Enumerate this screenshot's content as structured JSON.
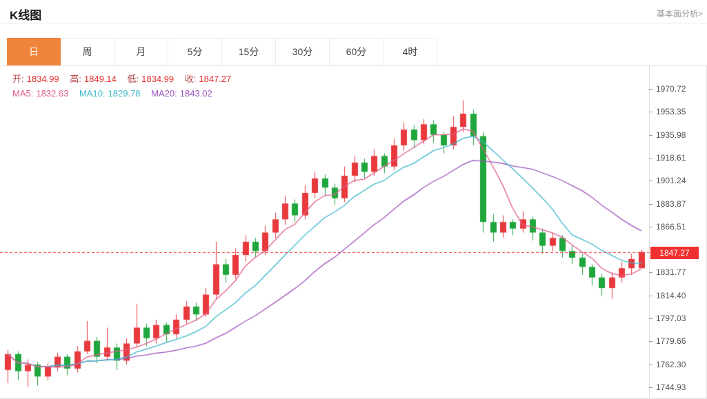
{
  "header": {
    "title": "K线图",
    "link": "基本面分析>"
  },
  "tabs": [
    {
      "label": "日",
      "active": true
    },
    {
      "label": "周",
      "active": false
    },
    {
      "label": "月",
      "active": false
    },
    {
      "label": "5分",
      "active": false
    },
    {
      "label": "15分",
      "active": false
    },
    {
      "label": "30分",
      "active": false
    },
    {
      "label": "60分",
      "active": false
    },
    {
      "label": "4时",
      "active": false
    }
  ],
  "info": {
    "ohlc": [
      {
        "label": "开:",
        "value": "1834.99"
      },
      {
        "label": "高:",
        "value": "1849.14"
      },
      {
        "label": "低:",
        "value": "1834.99"
      },
      {
        "label": "收:",
        "value": "1847.27"
      }
    ],
    "ma": [
      {
        "label": "MA5:",
        "value": "1832.63"
      },
      {
        "label": "MA10:",
        "value": "1829.78"
      },
      {
        "label": "MA20:",
        "value": "1843.02"
      }
    ]
  },
  "chart_data": {
    "type": "candlestick",
    "title": "K线图",
    "period_selected": "日",
    "legend": [
      "MA5",
      "MA10",
      "MA20"
    ],
    "ma_values": {
      "MA5": 1832.63,
      "MA10": 1829.78,
      "MA20": 1843.02
    },
    "ohlc_current": {
      "open": 1834.99,
      "high": 1849.14,
      "low": 1834.99,
      "close": 1847.27
    },
    "last_price": 1847.27,
    "last_price_label": "1847.27",
    "price_ticks": [
      "1970.72",
      "1953.35",
      "1935.98",
      "1918.61",
      "1901.24",
      "1883.87",
      "1866.51",
      "1831.77",
      "1814.40",
      "1797.03",
      "1779.66",
      "1762.30",
      "1744.93"
    ],
    "y_domain": [
      1736.5,
      1988.0
    ],
    "grid": false,
    "x_labels_visible": false,
    "colors": {
      "up": "#e8393d",
      "down": "#1fa63c",
      "ma5": "#e0608a",
      "ma10": "#3cb8cb",
      "ma20": "#9e54c0",
      "current": "#f03030",
      "axis_text": "#555555",
      "tab_active": "#f0843c"
    },
    "candles": [
      [
        1758,
        1773,
        1748,
        1770
      ],
      [
        1770,
        1772,
        1750,
        1757
      ],
      [
        1757,
        1766,
        1745,
        1762
      ],
      [
        1762,
        1764,
        1746,
        1753
      ],
      [
        1753,
        1763,
        1750,
        1760
      ],
      [
        1760,
        1771,
        1757,
        1768
      ],
      [
        1768,
        1770,
        1754,
        1759
      ],
      [
        1759,
        1776,
        1756,
        1772
      ],
      [
        1772,
        1795,
        1770,
        1780
      ],
      [
        1780,
        1783,
        1763,
        1768
      ],
      [
        1768,
        1790,
        1765,
        1775
      ],
      [
        1775,
        1778,
        1758,
        1765
      ],
      [
        1765,
        1782,
        1762,
        1778
      ],
      [
        1778,
        1808,
        1775,
        1790
      ],
      [
        1790,
        1793,
        1776,
        1782
      ],
      [
        1782,
        1796,
        1778,
        1792
      ],
      [
        1792,
        1794,
        1779,
        1785
      ],
      [
        1785,
        1800,
        1782,
        1796
      ],
      [
        1796,
        1810,
        1793,
        1806
      ],
      [
        1806,
        1809,
        1795,
        1800
      ],
      [
        1800,
        1820,
        1798,
        1815
      ],
      [
        1815,
        1855,
        1812,
        1838
      ],
      [
        1838,
        1842,
        1824,
        1830
      ],
      [
        1830,
        1850,
        1827,
        1845
      ],
      [
        1845,
        1860,
        1840,
        1855
      ],
      [
        1855,
        1858,
        1843,
        1848
      ],
      [
        1848,
        1867,
        1845,
        1862
      ],
      [
        1862,
        1877,
        1858,
        1872
      ],
      [
        1872,
        1890,
        1868,
        1884
      ],
      [
        1884,
        1887,
        1870,
        1875
      ],
      [
        1875,
        1898,
        1872,
        1892
      ],
      [
        1892,
        1908,
        1888,
        1903
      ],
      [
        1903,
        1906,
        1890,
        1896
      ],
      [
        1896,
        1899,
        1883,
        1888
      ],
      [
        1888,
        1912,
        1885,
        1905
      ],
      [
        1905,
        1920,
        1900,
        1915
      ],
      [
        1915,
        1918,
        1903,
        1908
      ],
      [
        1908,
        1925,
        1905,
        1920
      ],
      [
        1920,
        1922,
        1907,
        1912
      ],
      [
        1912,
        1933,
        1909,
        1928
      ],
      [
        1928,
        1945,
        1924,
        1940
      ],
      [
        1940,
        1943,
        1926,
        1932
      ],
      [
        1932,
        1948,
        1929,
        1944
      ],
      [
        1944,
        1947,
        1930,
        1936
      ],
      [
        1936,
        1938,
        1922,
        1928
      ],
      [
        1928,
        1950,
        1925,
        1942
      ],
      [
        1942,
        1962,
        1938,
        1952
      ],
      [
        1952,
        1955,
        1928,
        1935
      ],
      [
        1935,
        1938,
        1862,
        1870
      ],
      [
        1870,
        1876,
        1855,
        1862
      ],
      [
        1862,
        1875,
        1858,
        1870
      ],
      [
        1870,
        1872,
        1860,
        1865
      ],
      [
        1865,
        1878,
        1862,
        1872
      ],
      [
        1872,
        1874,
        1856,
        1862
      ],
      [
        1862,
        1865,
        1846,
        1852
      ],
      [
        1852,
        1862,
        1848,
        1858
      ],
      [
        1858,
        1860,
        1843,
        1848
      ],
      [
        1848,
        1852,
        1838,
        1843
      ],
      [
        1843,
        1846,
        1830,
        1836
      ],
      [
        1836,
        1838,
        1822,
        1828
      ],
      [
        1828,
        1831,
        1814,
        1820
      ],
      [
        1820,
        1832,
        1812,
        1828
      ],
      [
        1828,
        1840,
        1824,
        1835
      ],
      [
        1835,
        1846,
        1830,
        1842
      ],
      [
        1834.99,
        1849.14,
        1834.99,
        1847.27
      ]
    ]
  }
}
